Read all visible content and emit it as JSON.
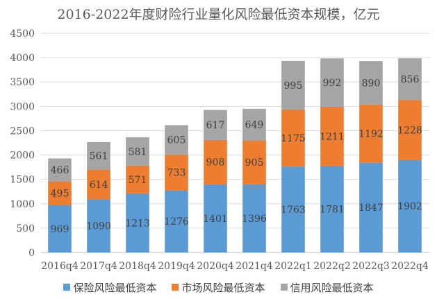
{
  "chart_data": {
    "type": "bar",
    "stacked": true,
    "title": "2016-2022年度财险行业量化风险最低资本规模，亿元",
    "xlabel": "",
    "ylabel": "",
    "ylim": [
      0,
      4500
    ],
    "yticks": [
      "0",
      "500",
      "1000",
      "1500",
      "2000",
      "2500",
      "3000",
      "3500",
      "4000",
      "4500"
    ],
    "grid": true,
    "legend_position": "bottom",
    "categories": [
      "2016q4",
      "2017q4",
      "2018q4",
      "2019q4",
      "2020q4",
      "2021q4",
      "2022q1",
      "2022q2",
      "2022q3",
      "2022q4"
    ],
    "series": [
      {
        "name": "保险风险最低资本",
        "color": "#5b9bd5",
        "values": [
          969,
          1090,
          1213,
          1276,
          1401,
          1396,
          1763,
          1781,
          1847,
          1902
        ]
      },
      {
        "name": "市场风险最低资本",
        "color": "#ed7d31",
        "values": [
          495,
          614,
          571,
          733,
          908,
          905,
          1175,
          1211,
          1192,
          1228
        ]
      },
      {
        "name": "信用风险最低资本",
        "color": "#a5a5a5",
        "values": [
          466,
          561,
          581,
          605,
          617,
          649,
          995,
          992,
          890,
          856
        ]
      }
    ]
  }
}
